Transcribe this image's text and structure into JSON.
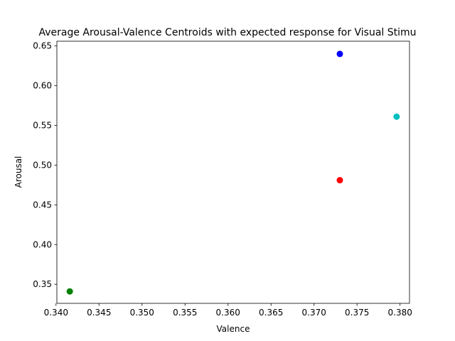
{
  "chart_data": {
    "type": "scatter",
    "title": "Average Arousal-Valence Centroids with expected response for Visual Stimu",
    "xlabel": "Valence",
    "ylabel": "Arousal",
    "xlim": [
      0.3401,
      0.3811
    ],
    "ylim": [
      0.326,
      0.656
    ],
    "grid": false,
    "x_ticks": [
      "0.340",
      "0.345",
      "0.350",
      "0.355",
      "0.360",
      "0.365",
      "0.370",
      "0.375",
      "0.380"
    ],
    "y_ticks": [
      "0.35",
      "0.40",
      "0.45",
      "0.50",
      "0.55",
      "0.60",
      "0.65"
    ],
    "points": [
      {
        "x": 0.373,
        "y": 0.64,
        "color": "#0000ff"
      },
      {
        "x": 0.3796,
        "y": 0.561,
        "color": "#00bfbf"
      },
      {
        "x": 0.373,
        "y": 0.481,
        "color": "#ff0000"
      },
      {
        "x": 0.3416,
        "y": 0.341,
        "color": "#008000"
      }
    ]
  }
}
